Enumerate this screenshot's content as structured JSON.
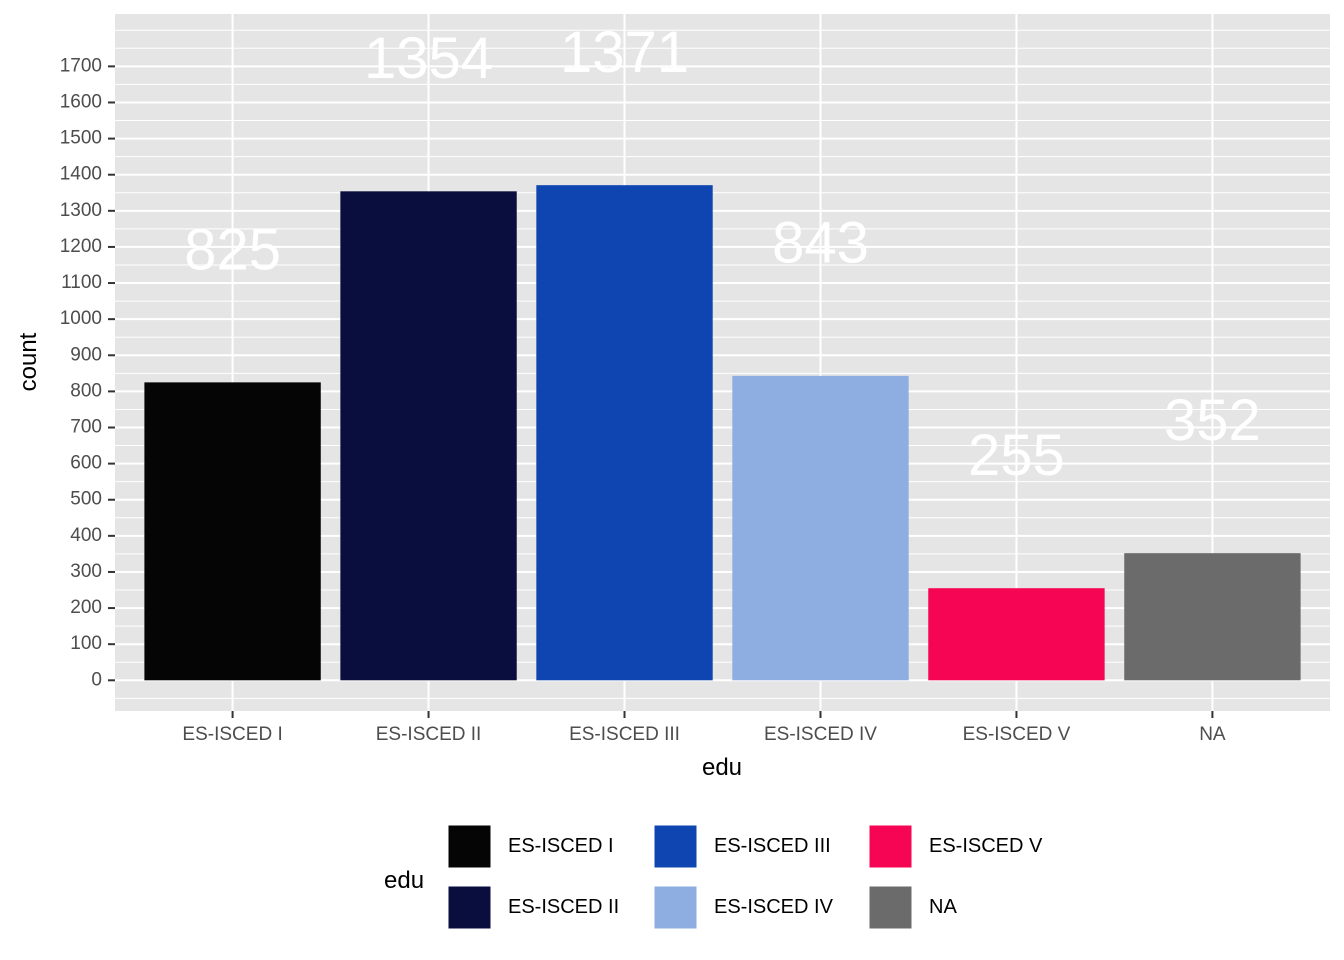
{
  "chart_data": {
    "type": "bar",
    "categories": [
      "ES-ISCED I",
      "ES-ISCED II",
      "ES-ISCED III",
      "ES-ISCED IV",
      "ES-ISCED V",
      "NA"
    ],
    "values": [
      825,
      1354,
      1371,
      843,
      255,
      352
    ],
    "colors": [
      "#050505",
      "#0a0e3f",
      "#0e45b0",
      "#8eadE0",
      "#f50553",
      "#6b6b6b"
    ],
    "data_labels": [
      "825",
      "1354",
      "1371",
      "843",
      "255",
      "352"
    ],
    "label_values": [
      1180,
      1710,
      1727,
      1199,
      611,
      708
    ],
    "xlabel": "edu",
    "ylabel": "count",
    "ylim": [
      -85,
      1845
    ],
    "yticks": [
      0,
      100,
      200,
      300,
      400,
      500,
      600,
      700,
      800,
      900,
      1000,
      1100,
      1200,
      1300,
      1400,
      1500,
      1600,
      1700
    ],
    "ytick_labels": [
      "0",
      "100",
      "200",
      "300",
      "400",
      "500",
      "600",
      "700",
      "800",
      "900",
      "1000",
      "1100",
      "1200",
      "1300",
      "1400",
      "1500",
      "1600",
      "1700"
    ],
    "grid": true,
    "panel_background": "#e5e5e5",
    "grid_color": "#ffffff",
    "legend": {
      "title": "edu",
      "position": "bottom",
      "entries": [
        "ES-ISCED I",
        "ES-ISCED II",
        "ES-ISCED III",
        "ES-ISCED IV",
        "ES-ISCED V",
        "NA"
      ]
    }
  }
}
